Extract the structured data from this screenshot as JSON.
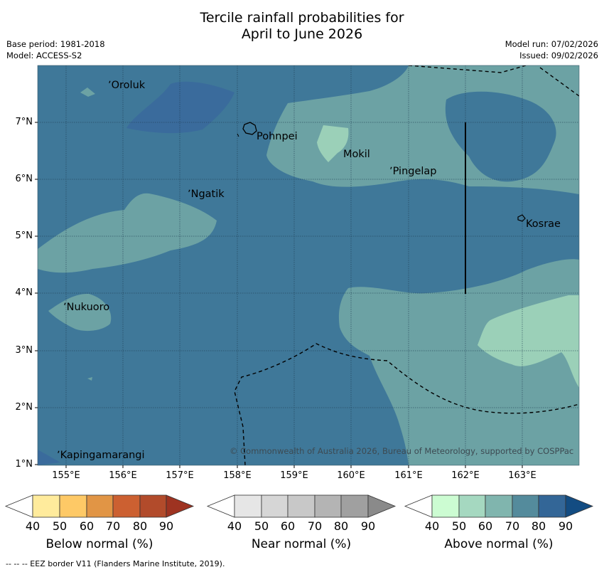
{
  "header": {
    "title_line1": "Tercile rainfall probabilities for",
    "title_line2": "April to June 2026",
    "base_period": "Base period: 1981-2018",
    "model": "Model: ACCESS-S2",
    "model_run": "Model run: 07/02/2026",
    "issued": "Issued: 09/02/2026"
  },
  "map": {
    "longitude_labels": [
      "155°E",
      "156°E",
      "157°E",
      "158°E",
      "159°E",
      "160°E",
      "161°E",
      "162°E",
      "163°E"
    ],
    "latitude_labels": [
      "7°N",
      "6°N",
      "5°N",
      "4°N",
      "3°N",
      "2°N",
      "1°N"
    ],
    "places": {
      "oroluk": "Oroluk",
      "pohnpei": "Pohnpei",
      "mokil": "Mokil",
      "pingelap": "Pingelap",
      "ngatik": "Ngatik",
      "kosrae": "Kosrae",
      "nukuoro": "Nukuoro",
      "kapingamarangi": "Kapingamarangi"
    },
    "copyright": "© Commonwealth of Australia 2026, Bureau of Meteorology, supported by COSPPac",
    "colors": {
      "above_70_80": "#3f7899",
      "above_80_90": "#3a6b9c",
      "above_60_70": "#6ca2a4",
      "above_50_60": "#9bd0b8"
    }
  },
  "colorbars": {
    "below": {
      "caption": "Below normal (%)",
      "ticks": [
        "40",
        "50",
        "60",
        "70",
        "80",
        "90"
      ],
      "colors": [
        "#ffeb9c",
        "#fec966",
        "#e19545",
        "#cc6031",
        "#b24b2b",
        "#9e3321"
      ]
    },
    "near": {
      "caption": "Near normal (%)",
      "ticks": [
        "40",
        "50",
        "60",
        "70",
        "80",
        "90"
      ],
      "colors": [
        "#e6e6e6",
        "#d6d6d6",
        "#c8c8c8",
        "#b4b4b4",
        "#a0a0a0",
        "#8a8a8a"
      ]
    },
    "above": {
      "caption": "Above normal (%)",
      "ticks": [
        "40",
        "50",
        "60",
        "70",
        "80",
        "90"
      ],
      "colors": [
        "#ccfcd2",
        "#a5d8c0",
        "#80b5ae",
        "#548b9c",
        "#336697",
        "#134c82"
      ]
    }
  },
  "footnote": "--  --  -- EEZ border V11 (Flanders Marine Institute, 2019)."
}
